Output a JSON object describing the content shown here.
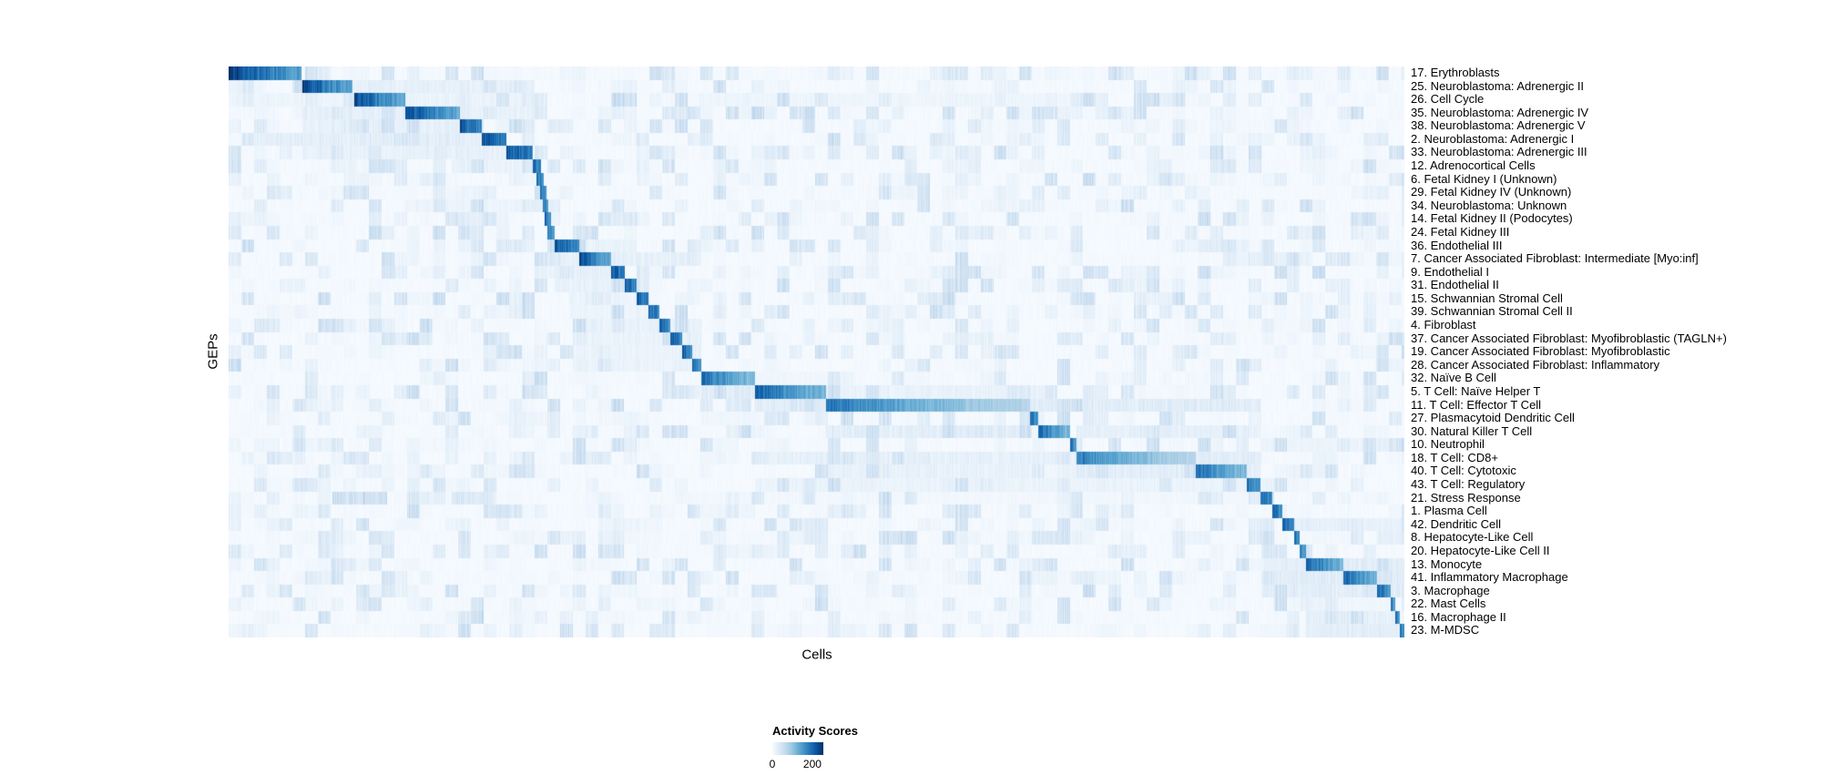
{
  "chart_data": {
    "type": "heatmap",
    "title": "",
    "xlabel": "Cells",
    "ylabel": "GEPs",
    "grid": false,
    "colormap_name": "Blues",
    "colormap": [
      "#f7fbff",
      "#deebf7",
      "#c6dbef",
      "#9ecae1",
      "#6baed6",
      "#4292c6",
      "#2171b5",
      "#08519c",
      "#08306b"
    ],
    "colorbar": {
      "title": "Activity Scores",
      "ticks": [
        0,
        200
      ],
      "tick_labels": [
        "0",
        "200"
      ],
      "vmax": 255
    },
    "x_axis_note": "individual cells, columns unlabeled, grouped by cell type along a diagonal",
    "rows": [
      {
        "label": "17. Erythroblasts",
        "block": [
          0.0,
          0.062
        ],
        "peak": 255,
        "aux": []
      },
      {
        "label": "25. Neuroblastoma: Adrenergic II",
        "block": [
          0.063,
          0.105
        ],
        "peak": 245,
        "aux": [
          [
            0.105,
            0.26,
            22
          ]
        ]
      },
      {
        "label": "26. Cell Cycle",
        "block": [
          0.107,
          0.15
        ],
        "peak": 240,
        "aux": [
          [
            0.0,
            0.105,
            14
          ],
          [
            0.15,
            0.26,
            16
          ],
          [
            0.4,
            0.72,
            12
          ]
        ]
      },
      {
        "label": "35. Neuroblastoma: Adrenergic IV",
        "block": [
          0.15,
          0.197
        ],
        "peak": 240,
        "aux": [
          [
            0.063,
            0.15,
            24
          ],
          [
            0.197,
            0.26,
            18
          ]
        ]
      },
      {
        "label": "38. Neuroblastoma: Adrenergic V",
        "block": [
          0.197,
          0.215
        ],
        "peak": 232,
        "aux": [
          [
            0.063,
            0.197,
            22
          ]
        ]
      },
      {
        "label": "2. Neuroblastoma: Adrenergic I",
        "block": [
          0.215,
          0.236
        ],
        "peak": 235,
        "aux": [
          [
            0.02,
            0.215,
            26
          ]
        ]
      },
      {
        "label": "33. Neuroblastoma: Adrenergic III",
        "block": [
          0.236,
          0.259
        ],
        "peak": 230,
        "aux": [
          [
            0.063,
            0.236,
            20
          ]
        ]
      },
      {
        "label": "12. Adrenocortical Cells",
        "block": [
          0.259,
          0.266
        ],
        "peak": 215,
        "aux": [
          [
            0.19,
            0.259,
            16
          ]
        ]
      },
      {
        "label": "6. Fetal Kidney I (Unknown)",
        "block": [
          0.262,
          0.268
        ],
        "peak": 205,
        "aux": [
          [
            0.24,
            0.262,
            12
          ]
        ]
      },
      {
        "label": "29. Fetal Kidney IV (Unknown)",
        "block": [
          0.265,
          0.27
        ],
        "peak": 198,
        "aux": []
      },
      {
        "label": "34. Neuroblastoma: Unknown",
        "block": [
          0.267,
          0.272
        ],
        "peak": 198,
        "aux": [
          [
            0.15,
            0.26,
            14
          ]
        ]
      },
      {
        "label": "14. Fetal Kidney II (Podocytes)",
        "block": [
          0.269,
          0.274
        ],
        "peak": 202,
        "aux": []
      },
      {
        "label": "24. Fetal Kidney III",
        "block": [
          0.271,
          0.277
        ],
        "peak": 196,
        "aux": []
      },
      {
        "label": "36. Endothelial III",
        "block": [
          0.277,
          0.298
        ],
        "peak": 226,
        "aux": [
          [
            0.298,
            0.347,
            18
          ]
        ]
      },
      {
        "label": "7. Cancer Associated Fibroblast: Intermediate [Myo:inf]",
        "block": [
          0.298,
          0.325
        ],
        "peak": 235,
        "aux": [
          [
            0.277,
            0.298,
            22
          ],
          [
            0.325,
            0.402,
            22
          ]
        ]
      },
      {
        "label": "9. Endothelial I",
        "block": [
          0.325,
          0.337
        ],
        "peak": 230,
        "aux": [
          [
            0.277,
            0.325,
            24
          ]
        ]
      },
      {
        "label": "31. Endothelial II",
        "block": [
          0.337,
          0.347
        ],
        "peak": 222,
        "aux": [
          [
            0.277,
            0.337,
            20
          ]
        ]
      },
      {
        "label": "15. Schwannian Stromal Cell",
        "block": [
          0.347,
          0.357
        ],
        "peak": 226,
        "aux": [
          [
            0.29,
            0.347,
            16
          ]
        ]
      },
      {
        "label": "39. Schwannian Stromal Cell II",
        "block": [
          0.357,
          0.366
        ],
        "peak": 216,
        "aux": [
          [
            0.29,
            0.357,
            14
          ]
        ]
      },
      {
        "label": "4. Fibroblast",
        "block": [
          0.366,
          0.376
        ],
        "peak": 222,
        "aux": [
          [
            0.298,
            0.366,
            18
          ],
          [
            0.376,
            0.402,
            18
          ]
        ]
      },
      {
        "label": "37. Cancer Associated Fibroblast: Myofibroblastic (TAGLN+)",
        "block": [
          0.376,
          0.386
        ],
        "peak": 226,
        "aux": [
          [
            0.3,
            0.376,
            18
          ],
          [
            0.386,
            0.402,
            22
          ]
        ]
      },
      {
        "label": "19. Cancer Associated Fibroblast: Myofibroblastic",
        "block": [
          0.386,
          0.394
        ],
        "peak": 216,
        "aux": [
          [
            0.3,
            0.386,
            16
          ],
          [
            0.394,
            0.402,
            20
          ]
        ]
      },
      {
        "label": "28. Cancer Associated Fibroblast: Inflammatory",
        "block": [
          0.394,
          0.402
        ],
        "peak": 212,
        "aux": [
          [
            0.3,
            0.394,
            16
          ]
        ]
      },
      {
        "label": "32. Naïve B Cell",
        "block": [
          0.402,
          0.448
        ],
        "peak": 202,
        "aux": [
          [
            0.448,
            0.52,
            10
          ]
        ]
      },
      {
        "label": "5. T Cell: Naïve Helper T",
        "block": [
          0.448,
          0.508
        ],
        "peak": 215,
        "aux": [
          [
            0.402,
            0.448,
            28
          ],
          [
            0.508,
            0.7,
            18
          ]
        ]
      },
      {
        "label": "11. T Cell: Effector T Cell",
        "block": [
          0.508,
          0.682
        ],
        "peak": 196,
        "aux": [
          [
            0.448,
            0.508,
            28
          ],
          [
            0.682,
            0.878,
            28
          ]
        ]
      },
      {
        "label": "27. Plasmacytoid Dendritic Cell",
        "block": [
          0.682,
          0.689
        ],
        "peak": 206,
        "aux": [
          [
            0.402,
            0.45,
            10
          ]
        ]
      },
      {
        "label": "30. Natural Killer T Cell",
        "block": [
          0.689,
          0.716
        ],
        "peak": 206,
        "aux": [
          [
            0.508,
            0.682,
            26
          ],
          [
            0.721,
            0.878,
            22
          ]
        ]
      },
      {
        "label": "10. Neutrophil",
        "block": [
          0.716,
          0.721
        ],
        "peak": 196,
        "aux": [
          [
            0.878,
            1.0,
            14
          ]
        ]
      },
      {
        "label": "18. T Cell: CD8+",
        "block": [
          0.721,
          0.823
        ],
        "peak": 188,
        "aux": [
          [
            0.448,
            0.721,
            22
          ],
          [
            0.823,
            0.878,
            28
          ]
        ]
      },
      {
        "label": "40. T Cell: Cytotoxic",
        "block": [
          0.823,
          0.866
        ],
        "peak": 200,
        "aux": [
          [
            0.508,
            0.682,
            20
          ],
          [
            0.721,
            0.823,
            26
          ],
          [
            0.866,
            0.878,
            24
          ]
        ]
      },
      {
        "label": "43. T Cell: Regulatory",
        "block": [
          0.866,
          0.878
        ],
        "peak": 196,
        "aux": [
          [
            0.448,
            0.866,
            16
          ]
        ]
      },
      {
        "label": "21. Stress Response",
        "block": [
          0.878,
          0.888
        ],
        "peak": 206,
        "aux": [
          [
            0.088,
            0.135,
            55
          ],
          [
            0.19,
            0.225,
            32
          ],
          [
            0.402,
            0.878,
            8
          ]
        ]
      },
      {
        "label": "1. Plasma Cell",
        "block": [
          0.888,
          0.896
        ],
        "peak": 215,
        "aux": [
          [
            0.402,
            0.448,
            12
          ]
        ]
      },
      {
        "label": "42. Dendritic Cell",
        "block": [
          0.896,
          0.906
        ],
        "peak": 206,
        "aux": [
          [
            0.906,
            1.0,
            20
          ]
        ]
      },
      {
        "label": "8. Hepatocyte-Like Cell",
        "block": [
          0.906,
          0.911
        ],
        "peak": 196,
        "aux": []
      },
      {
        "label": "20. Hepatocyte-Like Cell II",
        "block": [
          0.911,
          0.916
        ],
        "peak": 192,
        "aux": []
      },
      {
        "label": "13. Monocyte",
        "block": [
          0.916,
          0.948
        ],
        "peak": 216,
        "aux": [
          [
            0.888,
            0.916,
            26
          ],
          [
            0.948,
            1.0,
            28
          ]
        ]
      },
      {
        "label": "41. Inflammatory Macrophage",
        "block": [
          0.948,
          0.977
        ],
        "peak": 216,
        "aux": [
          [
            0.888,
            0.948,
            28
          ],
          [
            0.977,
            1.0,
            32
          ]
        ]
      },
      {
        "label": "3. Macrophage",
        "block": [
          0.977,
          0.988
        ],
        "peak": 210,
        "aux": [
          [
            0.888,
            0.977,
            26
          ],
          [
            0.988,
            1.0,
            28
          ]
        ]
      },
      {
        "label": "22. Mast Cells",
        "block": [
          0.988,
          0.992
        ],
        "peak": 196,
        "aux": [
          [
            0.888,
            0.988,
            10
          ]
        ]
      },
      {
        "label": "16. Macrophage II",
        "block": [
          0.992,
          0.996
        ],
        "peak": 206,
        "aux": [
          [
            0.916,
            0.992,
            22
          ]
        ]
      },
      {
        "label": "23. M-MDSC",
        "block": [
          0.996,
          1.0
        ],
        "peak": 216,
        "aux": [
          [
            0.916,
            0.996,
            24
          ]
        ]
      }
    ]
  }
}
